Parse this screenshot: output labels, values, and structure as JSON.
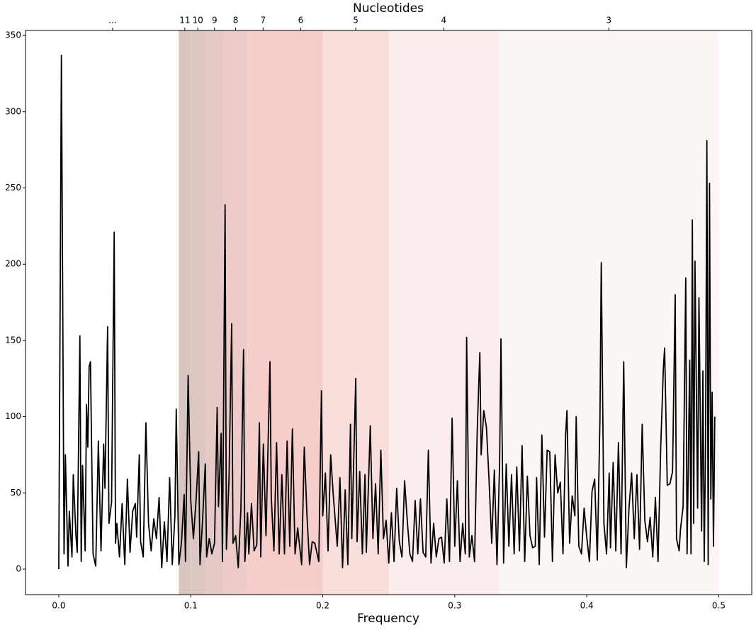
{
  "chart_data": {
    "type": "line",
    "xlabel": "Frequency",
    "top_xlabel": "Nucleotides",
    "color": "#000000",
    "xlim": [
      -0.0252,
      0.525
    ],
    "ylim": [
      -16.7,
      353.3
    ],
    "xticks": [
      {
        "value": 0,
        "label": "0.0"
      },
      0.1,
      0.2,
      0.3,
      0.4,
      0.5
    ],
    "yticks": [
      0,
      50,
      100,
      150,
      200,
      250,
      300,
      350
    ],
    "top_xticks": [
      {
        "value": 0.0408,
        "label": "..."
      },
      {
        "value": 0.0955,
        "label": "11"
      },
      {
        "value": 0.1053,
        "label": "10"
      },
      {
        "value": 0.118,
        "label": "9"
      },
      {
        "value": 0.134,
        "label": "8"
      },
      {
        "value": 0.1548,
        "label": "7"
      },
      {
        "value": 0.1833,
        "label": "6"
      },
      {
        "value": 0.225,
        "label": "5"
      },
      {
        "value": 0.2917,
        "label": "4"
      },
      {
        "value": 0.4167,
        "label": "3"
      }
    ],
    "bands": [
      {
        "from": 0.0909,
        "to": 0.1,
        "color": "#d9c5c0"
      },
      {
        "from": 0.1,
        "to": 0.1111,
        "color": "#dcc6c2"
      },
      {
        "from": 0.1111,
        "to": 0.125,
        "color": "#e5c9c7"
      },
      {
        "from": 0.125,
        "to": 0.1429,
        "color": "#eccbc9"
      },
      {
        "from": 0.1429,
        "to": 0.1667,
        "color": "#f5cdcb"
      },
      {
        "from": 0.1667,
        "to": 0.2,
        "color": "#f5cecb"
      },
      {
        "from": 0.2,
        "to": 0.25,
        "color": "#f8dedb"
      },
      {
        "from": 0.25,
        "to": 0.3333,
        "color": "#faedec"
      },
      {
        "from": 0.3333,
        "to": 0.5,
        "color": "#fcf6f5"
      }
    ],
    "x": [
      0.0,
      0.002,
      0.004,
      0.005,
      0.007,
      0.008,
      0.01,
      0.011,
      0.013,
      0.014,
      0.016,
      0.017,
      0.018,
      0.02,
      0.021,
      0.022,
      0.023,
      0.024,
      0.026,
      0.028,
      0.03,
      0.032,
      0.034,
      0.035,
      0.037,
      0.038,
      0.04,
      0.042,
      0.043,
      0.044,
      0.046,
      0.048,
      0.05,
      0.052,
      0.054,
      0.056,
      0.058,
      0.059,
      0.061,
      0.062,
      0.064,
      0.066,
      0.068,
      0.07,
      0.072,
      0.074,
      0.076,
      0.078,
      0.08,
      0.082,
      0.084,
      0.086,
      0.088,
      0.089,
      0.091,
      0.093,
      0.095,
      0.096,
      0.098,
      0.1,
      0.102,
      0.104,
      0.106,
      0.107,
      0.109,
      0.111,
      0.112,
      0.114,
      0.116,
      0.118,
      0.12,
      0.121,
      0.123,
      0.124,
      0.126,
      0.127,
      0.129,
      0.131,
      0.132,
      0.134,
      0.136,
      0.138,
      0.14,
      0.141,
      0.143,
      0.144,
      0.146,
      0.148,
      0.15,
      0.152,
      0.153,
      0.155,
      0.157,
      0.16,
      0.161,
      0.163,
      0.165,
      0.167,
      0.169,
      0.171,
      0.173,
      0.175,
      0.177,
      0.179,
      0.181,
      0.184,
      0.186,
      0.188,
      0.19,
      0.192,
      0.194,
      0.197,
      0.199,
      0.2,
      0.202,
      0.204,
      0.206,
      0.208,
      0.211,
      0.213,
      0.215,
      0.217,
      0.219,
      0.221,
      0.222,
      0.225,
      0.226,
      0.228,
      0.23,
      0.232,
      0.233,
      0.236,
      0.238,
      0.24,
      0.242,
      0.244,
      0.246,
      0.248,
      0.25,
      0.252,
      0.254,
      0.256,
      0.258,
      0.26,
      0.262,
      0.264,
      0.266,
      0.268,
      0.27,
      0.272,
      0.274,
      0.276,
      0.278,
      0.28,
      0.282,
      0.284,
      0.286,
      0.288,
      0.29,
      0.292,
      0.294,
      0.296,
      0.298,
      0.3,
      0.302,
      0.304,
      0.306,
      0.308,
      0.309,
      0.311,
      0.313,
      0.315,
      0.317,
      0.319,
      0.32,
      0.322,
      0.324,
      0.326,
      0.328,
      0.33,
      0.332,
      0.334,
      0.335,
      0.337,
      0.339,
      0.341,
      0.343,
      0.345,
      0.347,
      0.349,
      0.351,
      0.353,
      0.355,
      0.357,
      0.359,
      0.361,
      0.362,
      0.364,
      0.366,
      0.368,
      0.37,
      0.372,
      0.374,
      0.376,
      0.378,
      0.38,
      0.382,
      0.384,
      0.385,
      0.387,
      0.389,
      0.391,
      0.392,
      0.394,
      0.396,
      0.398,
      0.4,
      0.402,
      0.404,
      0.406,
      0.408,
      0.41,
      0.411,
      0.413,
      0.415,
      0.417,
      0.418,
      0.42,
      0.422,
      0.424,
      0.426,
      0.428,
      0.43,
      0.432,
      0.434,
      0.436,
      0.438,
      0.44,
      0.442,
      0.444,
      0.446,
      0.448,
      0.45,
      0.452,
      0.454,
      0.456,
      0.458,
      0.459,
      0.461,
      0.463,
      0.465,
      0.467,
      0.468,
      0.47,
      0.471,
      0.473,
      0.475,
      0.476,
      0.478,
      0.479,
      0.48,
      0.481,
      0.482,
      0.484,
      0.485,
      0.487,
      0.488,
      0.489,
      0.49,
      0.491,
      0.492,
      0.493,
      0.494,
      0.495,
      0.496,
      0.497
    ],
    "values": [
      0,
      337,
      10,
      75,
      2,
      38,
      8,
      62,
      22,
      11,
      153,
      5,
      68,
      12,
      108,
      80,
      133,
      136,
      10,
      2,
      84,
      12,
      82,
      53,
      159,
      30,
      44,
      221,
      17,
      30,
      8,
      43,
      3,
      59,
      11,
      38,
      43,
      21,
      75,
      18,
      8,
      96,
      30,
      12,
      33,
      20,
      47,
      1,
      31,
      5,
      60,
      3,
      35,
      105,
      3,
      18,
      49,
      5,
      127,
      45,
      20,
      45,
      77,
      3,
      33,
      69,
      8,
      20,
      10,
      17,
      106,
      41,
      89,
      5,
      239,
      13,
      60,
      161,
      17,
      22,
      1,
      40,
      144,
      5,
      37,
      10,
      43,
      12,
      16,
      96,
      8,
      82,
      22,
      136,
      47,
      12,
      83,
      10,
      62,
      10,
      84,
      15,
      92,
      10,
      27,
      3,
      80,
      36,
      3,
      18,
      17,
      5,
      117,
      35,
      63,
      12,
      75,
      48,
      15,
      60,
      1,
      52,
      3,
      95,
      20,
      125,
      18,
      64,
      10,
      62,
      11,
      94,
      20,
      56,
      10,
      78,
      20,
      32,
      4,
      37,
      5,
      53,
      18,
      8,
      58,
      32,
      10,
      5,
      45,
      10,
      46,
      11,
      8,
      78,
      4,
      30,
      8,
      20,
      21,
      4,
      46,
      5,
      99,
      15,
      58,
      5,
      30,
      10,
      152,
      8,
      22,
      5,
      90,
      142,
      75,
      104,
      93,
      58,
      17,
      65,
      3,
      70,
      151,
      4,
      69,
      15,
      62,
      10,
      67,
      12,
      81,
      5,
      61,
      22,
      14,
      15,
      60,
      3,
      88,
      21,
      78,
      77,
      5,
      75,
      50,
      57,
      10,
      88,
      104,
      17,
      48,
      35,
      100,
      15,
      10,
      40,
      21,
      5,
      51,
      59,
      6,
      99,
      201,
      30,
      10,
      63,
      14,
      70,
      12,
      83,
      10,
      136,
      1,
      40,
      63,
      20,
      62,
      13,
      95,
      32,
      18,
      34,
      8,
      47,
      5,
      79,
      131,
      145,
      55,
      56,
      64,
      180,
      20,
      12,
      26,
      41,
      191,
      10,
      137,
      10,
      229,
      30,
      202,
      40,
      178,
      25,
      130,
      5,
      83,
      281,
      3,
      253,
      46,
      116,
      15,
      100
    ]
  }
}
